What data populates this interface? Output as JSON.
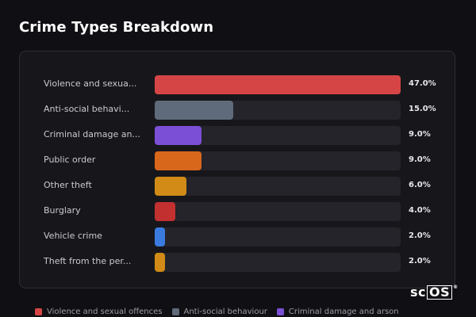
{
  "title": "Crime Types Breakdown",
  "chart_data": {
    "type": "bar",
    "orientation": "horizontal",
    "categories": [
      "Violence and sexua...",
      "Anti-social behavi...",
      "Criminal damage an...",
      "Public order",
      "Other theft",
      "Burglary",
      "Vehicle crime",
      "Theft from the per..."
    ],
    "values": [
      47.0,
      15.0,
      9.0,
      9.0,
      6.0,
      4.0,
      2.0,
      2.0
    ],
    "value_labels": [
      "47.0%",
      "15.0%",
      "9.0%",
      "9.0%",
      "6.0%",
      "4.0%",
      "2.0%",
      "2.0%"
    ],
    "colors": [
      "#d64545",
      "#5f6b7a",
      "#7b4fd6",
      "#d8671c",
      "#d18b16",
      "#c23030",
      "#3b7be0",
      "#d18b16"
    ],
    "xlim": [
      0,
      47
    ],
    "unit": "%"
  },
  "legend": [
    {
      "label": "Violence and sexual offences",
      "color": "#d64545"
    },
    {
      "label": "Anti-social behaviour",
      "color": "#5f6b7a"
    },
    {
      "label": "Criminal damage and arson",
      "color": "#7b4fd6"
    }
  ],
  "logo": {
    "prefix": "sc",
    "boxed": "OS",
    "mark": "®"
  }
}
